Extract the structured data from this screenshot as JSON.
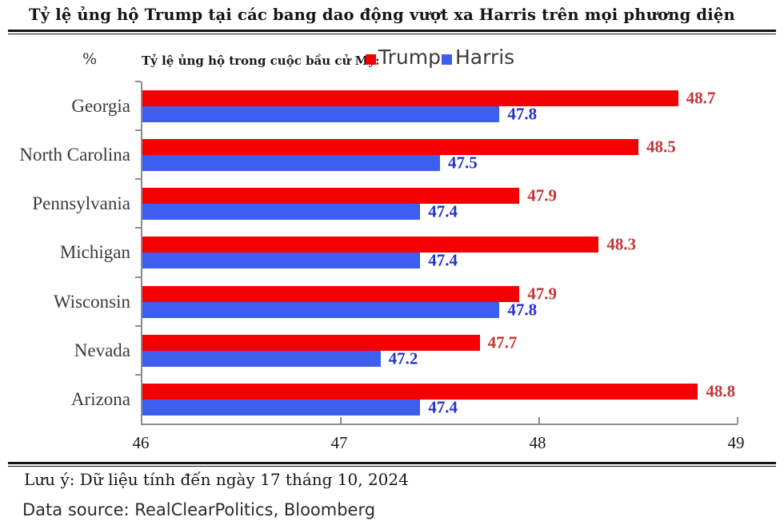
{
  "title": "Tỷ lệ ủng hộ Trump tại các bang dao động vượt xa Harris trên mọi phương diện",
  "legend": {
    "caption": "Tỷ lệ ủng hộ trong cuộc bầu cử Mỹ:",
    "unit_label": "%",
    "trump_label": "Trump",
    "harris_label": "Harris"
  },
  "colors": {
    "trump_bar": "#F40000",
    "harris_bar": "#3C5FEF",
    "trump_value_text": "#C23636",
    "harris_value_text": "#2433CB",
    "axis": "#8c8c8c"
  },
  "chart_data": {
    "type": "bar",
    "orientation": "horizontal",
    "title": "Tỷ lệ ủng hộ Trump tại các bang dao động vượt xa Harris trên mọi phương diện",
    "categories": [
      "Georgia",
      "North Carolina",
      "Pennsylvania",
      "Michigan",
      "Wisconsin",
      "Nevada",
      "Arizona"
    ],
    "series": [
      {
        "name": "Trump",
        "color": "#F40000",
        "label_color": "#C23636",
        "values": [
          48.7,
          48.5,
          47.9,
          48.3,
          47.9,
          47.7,
          48.8
        ]
      },
      {
        "name": "Harris",
        "color": "#3C5FEF",
        "label_color": "#2433CB",
        "values": [
          47.8,
          47.5,
          47.4,
          47.4,
          47.8,
          47.2,
          47.4
        ]
      }
    ],
    "xlim": [
      46,
      49
    ],
    "x_ticks": [
      46,
      47,
      48,
      49
    ],
    "xlabel": "",
    "ylabel": "%",
    "grid": false,
    "legend_position": "top"
  },
  "footnotes": {
    "note": "Lưu ý: Dữ liệu tính đến ngày 17 tháng 10, 2024",
    "source": "Data source: RealClearPolitics,  Bloomberg"
  }
}
